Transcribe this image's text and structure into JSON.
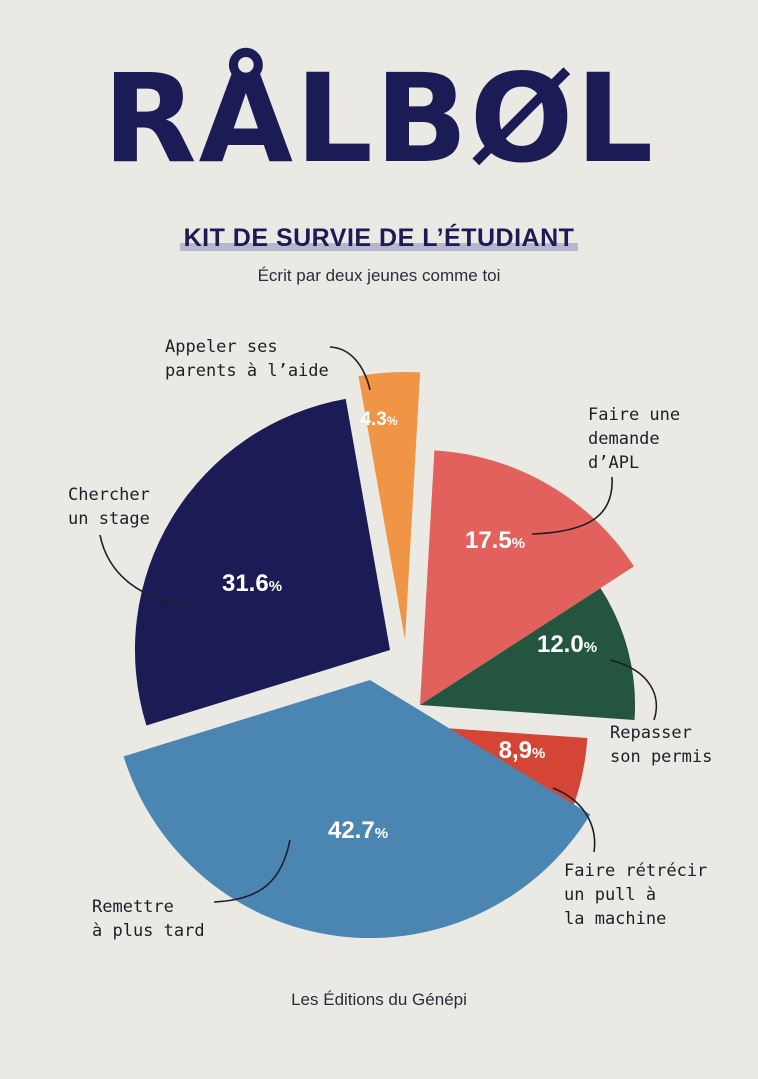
{
  "cover": {
    "title": "RÅLBØL",
    "subtitle": "KIT DE SURVIE DE L’ÉTUDIANT",
    "tagline": "Écrit par deux jeunes comme toi",
    "publisher": "Les Éditions du Génépi"
  },
  "chart_data": {
    "type": "pie",
    "title": "",
    "slices": [
      {
        "label": [
          "Appeler ses",
          "parents à l’aide"
        ],
        "value": 4.3,
        "display": "4.3%",
        "color": "#ef9545"
      },
      {
        "label": [
          "Faire une",
          "demande",
          "d’APL"
        ],
        "value": 17.5,
        "display": "17.5%",
        "color": "#e2615c"
      },
      {
        "label": [
          "Repasser",
          "son permis"
        ],
        "value": 12.0,
        "display": "12.0%",
        "color": "#24553f"
      },
      {
        "label": [
          "Faire rétrécir",
          "un pull à",
          "la machine"
        ],
        "value": 8.9,
        "display": "8,9%",
        "color": "#d44535"
      },
      {
        "label": [
          "Remettre",
          "à plus tard"
        ],
        "value": 42.7,
        "display": "42.7%",
        "color": "#4b86b3"
      },
      {
        "label": [
          "Chercher",
          "un stage"
        ],
        "value": 31.6,
        "display": "31.6%",
        "color": "#1b1b55"
      }
    ]
  }
}
